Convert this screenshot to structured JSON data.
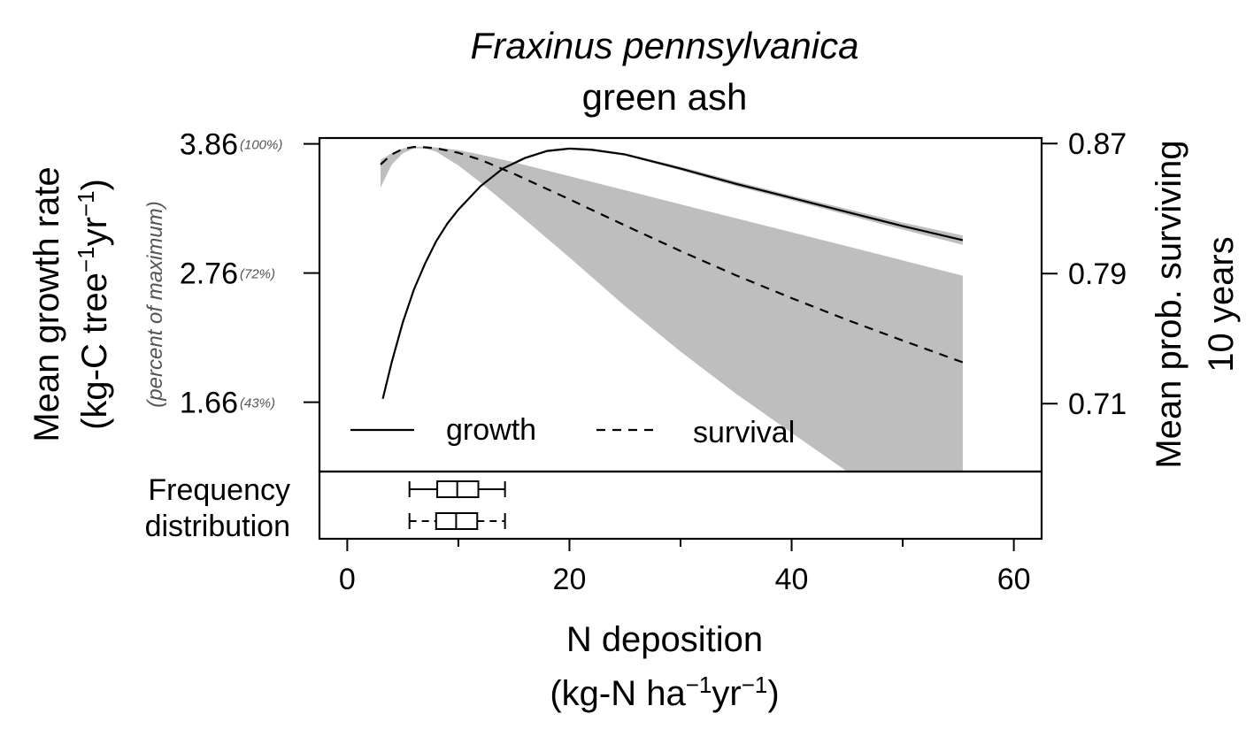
{
  "chart_data": {
    "type": "line",
    "title": "Fraxinus pennsylvanica",
    "subtitle": "green ash",
    "xlabel": "N deposition",
    "xlabel_units": [
      "(kg-N ha",
      "−1",
      "yr",
      "−1",
      ")"
    ],
    "ylabel_left": [
      "Mean growth rate",
      "(kg-C tree",
      "−1",
      "yr",
      "−1",
      ")"
    ],
    "ylabel_left_secondary": "(percent of maximum)",
    "ylabel_right": [
      "Mean prob. surviving",
      "10 years"
    ],
    "xlim": [
      -2.5,
      62.5
    ],
    "ylim_left": [
      1.07,
      3.91
    ],
    "ylim_right": [
      0.6682,
      0.8734
    ],
    "x_ticks": [
      0,
      20,
      40,
      60
    ],
    "x_minor_ticks": [
      10,
      30,
      50
    ],
    "y_left_ticks": [
      {
        "value": 3.86,
        "label": "3.86",
        "pct": "(100%)"
      },
      {
        "value": 2.76,
        "label": "2.76",
        "pct": "(72%)"
      },
      {
        "value": 1.66,
        "label": "1.66",
        "pct": "(43%)"
      }
    ],
    "y_right_ticks": [
      {
        "value": 0.87,
        "label": "0.87"
      },
      {
        "value": 0.79,
        "label": "0.79"
      },
      {
        "value": 0.71,
        "label": "0.71"
      }
    ],
    "series": [
      {
        "name": "growth",
        "axis": "left",
        "style": "solid",
        "x": [
          3.2,
          4,
          5,
          6,
          7,
          8,
          9,
          10,
          12,
          14,
          16,
          18,
          20,
          22,
          25,
          30,
          35,
          40,
          45,
          50,
          55.4
        ],
        "y": [
          1.69,
          2.0,
          2.34,
          2.62,
          2.84,
          3.03,
          3.18,
          3.3,
          3.5,
          3.65,
          3.74,
          3.8,
          3.82,
          3.81,
          3.77,
          3.65,
          3.52,
          3.4,
          3.28,
          3.16,
          3.04
        ],
        "band_upper": [
          1.7,
          2.01,
          2.35,
          2.63,
          2.85,
          3.04,
          3.19,
          3.31,
          3.51,
          3.66,
          3.75,
          3.81,
          3.83,
          3.82,
          3.78,
          3.665,
          3.54,
          3.42,
          3.305,
          3.19,
          3.08
        ],
        "band_lower": [
          1.68,
          1.99,
          2.33,
          2.61,
          2.83,
          3.02,
          3.17,
          3.29,
          3.49,
          3.64,
          3.73,
          3.79,
          3.81,
          3.8,
          3.76,
          3.635,
          3.5,
          3.38,
          3.255,
          3.13,
          3.0
        ]
      },
      {
        "name": "survival",
        "axis": "right",
        "style": "dashed",
        "x": [
          3,
          4,
          5,
          6,
          7,
          8,
          10,
          12,
          15,
          20,
          25,
          30,
          35,
          40,
          45,
          50,
          55.4
        ],
        "y": [
          0.8571,
          0.8633,
          0.8667,
          0.8679,
          0.8677,
          0.8671,
          0.8643,
          0.86,
          0.8514,
          0.8357,
          0.8196,
          0.8039,
          0.7889,
          0.7749,
          0.7615,
          0.7488,
          0.7354
        ],
        "band_upper": [
          0.86,
          0.864,
          0.867,
          0.868,
          0.868,
          0.8676,
          0.866,
          0.8632,
          0.8585,
          0.8499,
          0.8413,
          0.8326,
          0.824,
          0.8154,
          0.8068,
          0.7981,
          0.7887
        ],
        "band_lower": [
          0.8429,
          0.857,
          0.864,
          0.867,
          0.867,
          0.865,
          0.8565,
          0.846,
          0.829,
          0.7999,
          0.77,
          0.742,
          0.716,
          0.692,
          0.6682,
          0.6682,
          0.6682
        ]
      }
    ],
    "legend": {
      "placement": "bottom-left",
      "entries": [
        "growth",
        "survival"
      ]
    },
    "frequency_distribution": {
      "label": [
        "Frequency",
        "distribution"
      ],
      "boxes": [
        {
          "style": "solid",
          "whisker_low": 5.6,
          "q1": 8.1,
          "median": 9.9,
          "q3": 11.8,
          "whisker_high": 14.2
        },
        {
          "style": "dashed",
          "whisker_low": 5.6,
          "q1": 8.0,
          "median": 9.8,
          "q3": 11.7,
          "whisker_high": 14.2
        }
      ]
    },
    "grid": false
  }
}
